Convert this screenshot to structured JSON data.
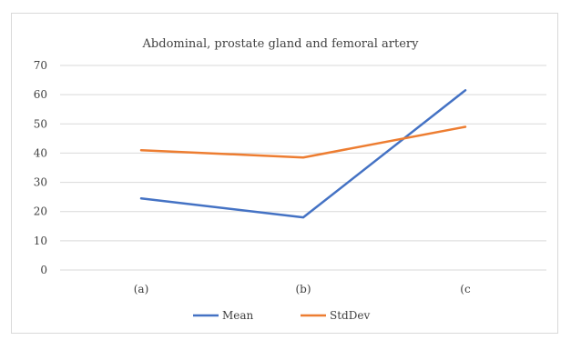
{
  "chart_data": {
    "type": "line",
    "title": "Abdominal, prostate gland and femoral artery",
    "categories": [
      "(a)",
      "(b)",
      "(c"
    ],
    "ylim": [
      0,
      70
    ],
    "yticks": [
      0,
      10,
      20,
      30,
      40,
      50,
      60,
      70
    ],
    "grid": true,
    "legend_position": "bottom",
    "series": [
      {
        "name": "Mean",
        "values": [
          24.5,
          18,
          61.5
        ],
        "color": "#4472c4"
      },
      {
        "name": "StdDev",
        "values": [
          41,
          38.5,
          49
        ],
        "color": "#ed7d31"
      }
    ]
  }
}
